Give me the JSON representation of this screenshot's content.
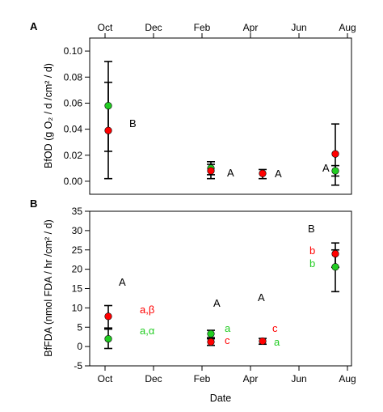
{
  "chart_data": [
    {
      "panel_label": "A",
      "type": "scatter",
      "ylabel": "BfOD (g O₂ / d /cm² / d)",
      "ylim": [
        -0.01,
        0.11
      ],
      "yticks": [
        "0.00",
        "0.02",
        "0.04",
        "0.06",
        "0.08",
        "0.10"
      ],
      "x_top_ticks": [
        "Oct",
        "Dec",
        "Feb",
        "Apr",
        "Jun",
        "Aug"
      ],
      "series": [
        {
          "color": "#ff0000",
          "points": [
            {
              "x": "Oct",
              "y": 0.039,
              "yerr_low": 0.002,
              "yerr_high": 0.092
            },
            {
              "x": "Feb",
              "y": 0.008,
              "yerr_low": 0.002,
              "yerr_high": 0.013
            },
            {
              "x": "Apr",
              "y": 0.006,
              "yerr_low": 0.002,
              "yerr_high": 0.009
            },
            {
              "x": "Aug",
              "y": 0.021,
              "yerr_low": -0.003,
              "yerr_high": 0.044
            }
          ]
        },
        {
          "color": "#22cc22",
          "points": [
            {
              "x": "Oct",
              "y": 0.058,
              "yerr_low": 0.023,
              "yerr_high": 0.076
            },
            {
              "x": "Feb",
              "y": 0.01,
              "yerr_low": 0.005,
              "yerr_high": 0.015
            },
            {
              "x": "Aug",
              "y": 0.008,
              "yerr_low": 0.004,
              "yerr_high": 0.012
            }
          ]
        }
      ],
      "annotations": [
        {
          "text": "B",
          "color": "#000000"
        },
        {
          "text": "A",
          "color": "#000000"
        },
        {
          "text": "A",
          "color": "#000000"
        },
        {
          "text": "A",
          "color": "#000000"
        }
      ]
    },
    {
      "panel_label": "B",
      "type": "scatter",
      "ylabel": "BfFDA (nmol FDA / hr /cm² / d)",
      "xlabel": "Date",
      "ylim": [
        -5,
        35
      ],
      "yticks": [
        "-5",
        "0",
        "5",
        "10",
        "15",
        "20",
        "25",
        "30",
        "35"
      ],
      "x_bottom_ticks": [
        "Oct",
        "Dec",
        "Feb",
        "Apr",
        "Jun",
        "Aug"
      ],
      "series": [
        {
          "color": "#ff0000",
          "points": [
            {
              "x": "Oct",
              "y": 7.8,
              "yerr_low": 4.8,
              "yerr_high": 10.6
            },
            {
              "x": "Feb",
              "y": 1.2,
              "yerr_low": 0.3,
              "yerr_high": 2.0
            },
            {
              "x": "Apr",
              "y": 1.4,
              "yerr_low": 0.6,
              "yerr_high": 2.1
            },
            {
              "x": "Aug",
              "y": 24.0,
              "yerr_low": 20.5,
              "yerr_high": 26.8
            }
          ]
        },
        {
          "color": "#22cc22",
          "points": [
            {
              "x": "Oct",
              "y": 2.0,
              "yerr_low": -0.5,
              "yerr_high": 4.5
            },
            {
              "x": "Feb",
              "y": 3.3,
              "yerr_low": 2.3,
              "yerr_high": 4.2
            },
            {
              "x": "Aug",
              "y": 20.6,
              "yerr_low": 14.2,
              "yerr_high": 25.0
            }
          ]
        }
      ],
      "annotations": [
        {
          "text": "A",
          "color": "#000000"
        },
        {
          "text": "a,β",
          "color": "#ff0000"
        },
        {
          "text": "a,α",
          "color": "#22cc22"
        },
        {
          "text": "A",
          "color": "#000000"
        },
        {
          "text": "a",
          "color": "#22cc22"
        },
        {
          "text": "c",
          "color": "#ff0000"
        },
        {
          "text": "A",
          "color": "#000000"
        },
        {
          "text": "c",
          "color": "#ff0000"
        },
        {
          "text": "a",
          "color": "#22cc22"
        },
        {
          "text": "B",
          "color": "#000000"
        },
        {
          "text": "b",
          "color": "#ff0000"
        },
        {
          "text": "b",
          "color": "#22cc22"
        }
      ]
    }
  ]
}
